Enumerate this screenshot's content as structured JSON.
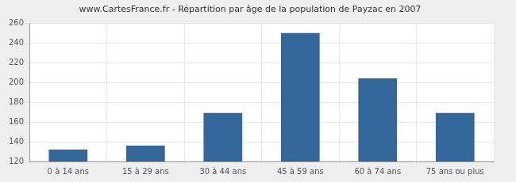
{
  "chart_data": {
    "type": "bar",
    "title": "www.CartesFrance.fr - Répartition par âge de la population de Payzac en 2007",
    "categories": [
      "0 à 14 ans",
      "15 à 29 ans",
      "30 à 44 ans",
      "45 à 59 ans",
      "60 à 74 ans",
      "75 ans ou plus"
    ],
    "values": [
      132,
      136,
      169,
      250,
      204,
      169
    ],
    "color": "#336699",
    "ylim": [
      120,
      260
    ],
    "yticks": [
      120,
      140,
      160,
      180,
      200,
      220,
      240,
      260
    ],
    "grid": true
  }
}
